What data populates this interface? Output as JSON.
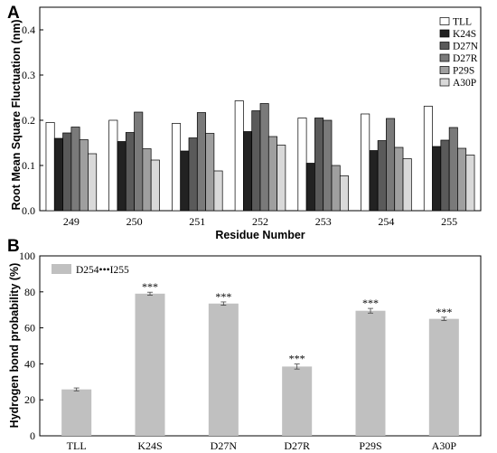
{
  "chart_data": [
    {
      "panel": "A",
      "type": "bar",
      "xlabel": "Residue Number",
      "ylabel": "Root Mean Square Fluctuation (nm)",
      "ylim": [
        0,
        0.45
      ],
      "yticks": [
        "0.0",
        "0.1",
        "0.2",
        "0.3",
        "0.4"
      ],
      "categories": [
        "249",
        "250",
        "251",
        "252",
        "253",
        "254",
        "255"
      ],
      "legend_position": "top-right",
      "grid": false,
      "series": [
        {
          "name": "TLL",
          "color": "#ffffff",
          "values": [
            0.195,
            0.2,
            0.193,
            0.243,
            0.205,
            0.214,
            0.231
          ]
        },
        {
          "name": "K24S",
          "color": "#222222",
          "values": [
            0.16,
            0.153,
            0.132,
            0.175,
            0.105,
            0.133,
            0.142
          ]
        },
        {
          "name": "D27N",
          "color": "#5a5a5a",
          "values": [
            0.172,
            0.173,
            0.161,
            0.221,
            0.205,
            0.155,
            0.156
          ]
        },
        {
          "name": "D27R",
          "color": "#7a7a7a",
          "values": [
            0.185,
            0.218,
            0.217,
            0.237,
            0.2,
            0.204,
            0.184
          ]
        },
        {
          "name": "P29S",
          "color": "#9f9f9f",
          "values": [
            0.157,
            0.137,
            0.171,
            0.164,
            0.1,
            0.14,
            0.138
          ]
        },
        {
          "name": "A30P",
          "color": "#d9d9d9",
          "values": [
            0.126,
            0.112,
            0.088,
            0.145,
            0.077,
            0.115,
            0.123
          ]
        }
      ]
    },
    {
      "panel": "B",
      "type": "bar",
      "xlabel": "",
      "ylabel": "Hydrogen bond probability (%)",
      "ylim": [
        0,
        100
      ],
      "yticks": [
        "0",
        "20",
        "40",
        "60",
        "80",
        "100"
      ],
      "categories": [
        "TLL",
        "K24S",
        "D27N",
        "D27R",
        "P29S",
        "A30P"
      ],
      "legend_position": "top-left",
      "grid": false,
      "series": [
        {
          "name": "D254•••I255",
          "color": "#c0c0c0",
          "values": [
            25.8,
            79.0,
            73.5,
            38.5,
            69.5,
            65.0
          ],
          "errors": [
            0.8,
            0.8,
            0.9,
            1.4,
            1.3,
            0.9
          ],
          "annotations": [
            "",
            "***",
            "***",
            "***",
            "***",
            "***"
          ]
        }
      ]
    }
  ]
}
